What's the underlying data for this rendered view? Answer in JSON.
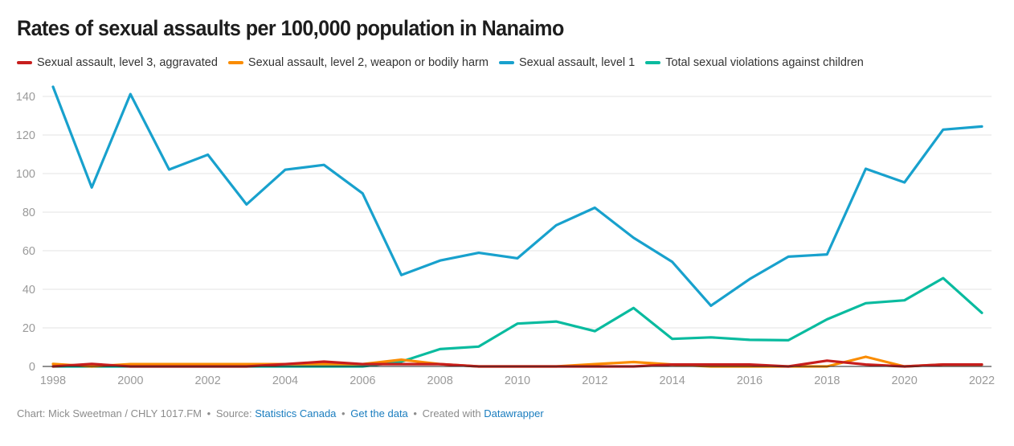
{
  "chart_data": {
    "type": "line",
    "title": "Rates of sexual assaults per 100,000 population in Nanaimo",
    "xlabel": "",
    "ylabel": "",
    "ylim": [
      0,
      140
    ],
    "yticks": [
      0,
      20,
      40,
      60,
      80,
      100,
      120,
      140
    ],
    "xticks": [
      1998,
      2000,
      2002,
      2004,
      2006,
      2008,
      2010,
      2012,
      2014,
      2016,
      2018,
      2020,
      2022
    ],
    "grid": true,
    "legend_position": "top-left",
    "x": [
      1998,
      1999,
      2000,
      2001,
      2002,
      2003,
      2004,
      2005,
      2006,
      2007,
      2008,
      2009,
      2010,
      2011,
      2012,
      2013,
      2014,
      2015,
      2016,
      2017,
      2018,
      2019,
      2020,
      2021,
      2022
    ],
    "series": [
      {
        "name": "Sexual assault, level 3, aggravated",
        "color": "#c71e1d",
        "values": [
          0.0,
          1.3,
          0.0,
          0.0,
          0.0,
          0.0,
          1.2,
          2.5,
          1.2,
          1.2,
          1.2,
          0.0,
          0.0,
          0.0,
          0.0,
          0.0,
          1.0,
          1.0,
          1.0,
          0.0,
          3.0,
          1.0,
          0.0,
          1.0,
          1.0
        ]
      },
      {
        "name": "Sexual assault, level 2, weapon or bodily harm",
        "color": "#fa8c00",
        "values": [
          1.3,
          0.0,
          1.2,
          1.2,
          1.2,
          1.2,
          1.2,
          1.2,
          1.2,
          3.5,
          1.2,
          0.0,
          0.0,
          0.0,
          1.2,
          2.3,
          1.0,
          0.0,
          0.0,
          0.0,
          0.0,
          5.0,
          0.0,
          1.0,
          1.0
        ]
      },
      {
        "name": "Sexual assault, level 1",
        "color": "#18a1cd",
        "values": [
          145.0,
          92.8,
          141.2,
          102.1,
          109.8,
          84.0,
          102.0,
          104.5,
          89.7,
          47.4,
          54.9,
          58.9,
          56.1,
          73.2,
          82.3,
          66.7,
          54.2,
          31.5,
          45.3,
          56.9,
          58.1,
          102.5,
          95.4,
          122.8,
          124.4
        ]
      },
      {
        "name": "Total sexual violations against children",
        "color": "#09bb9f",
        "values": [
          0.0,
          0.0,
          0.0,
          0.0,
          0.0,
          0.0,
          0.0,
          0.0,
          0.0,
          2.5,
          9.0,
          10.3,
          22.2,
          23.3,
          18.3,
          30.3,
          14.3,
          15.1,
          13.8,
          13.6,
          24.4,
          32.8,
          34.3,
          45.8,
          27.8
        ]
      }
    ]
  },
  "footer": {
    "credit": "Chart: Mick Sweetman / CHLY 1017.FM",
    "source_label": "Source:",
    "source_link": "Statistics Canada",
    "get_data_link": "Get the data",
    "created_label": "Created with",
    "created_link": "Datawrapper",
    "separator": "•"
  }
}
